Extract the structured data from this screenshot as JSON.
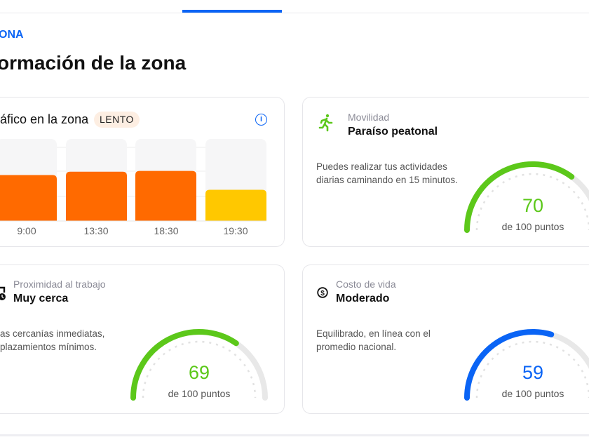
{
  "header": {
    "eyebrow": "ONA",
    "title": "ormación de la zona"
  },
  "traffic": {
    "title": "áfico en la zona",
    "badge": "LENTO",
    "info_icon": "info-icon",
    "chart_data": {
      "type": "bar",
      "categories": [
        "9:00",
        "13:30",
        "18:30",
        "19:30"
      ],
      "values": [
        0.56,
        0.6,
        0.61,
        0.38
      ],
      "ylim": [
        0,
        1
      ],
      "grid": true,
      "colors": [
        "#ff6a00",
        "#ff6a00",
        "#ff6a00",
        "#ffc800"
      ]
    }
  },
  "cards": [
    {
      "label": "Movilidad",
      "value": "Paraíso peatonal",
      "icon": "walking-person-icon",
      "desc1": "Puedes realizar tus actividades",
      "desc2": "diarias caminando en 15 minutos.",
      "score": "70",
      "score_value": 70,
      "score_sub": "de 100 puntos",
      "color": "#5cc81a"
    },
    {
      "label": "Proximidad al trabajo",
      "value": "Muy cerca",
      "icon": "briefcase-clock-icon",
      "desc1": "as cercanías inmediatas,",
      "desc2": "plazamientos mínimos.",
      "score": "69",
      "score_value": 69,
      "score_sub": "de 100 puntos",
      "color": "#5cc81a"
    },
    {
      "label": "Costo de vida",
      "value": "Moderado",
      "icon": "dollar-circle-icon",
      "desc1": "Equilibrado, en línea con el",
      "desc2": "promedio nacional.",
      "score": "59",
      "score_value": 59,
      "score_sub": "de 100 puntos",
      "color": "#0a64f5"
    }
  ]
}
